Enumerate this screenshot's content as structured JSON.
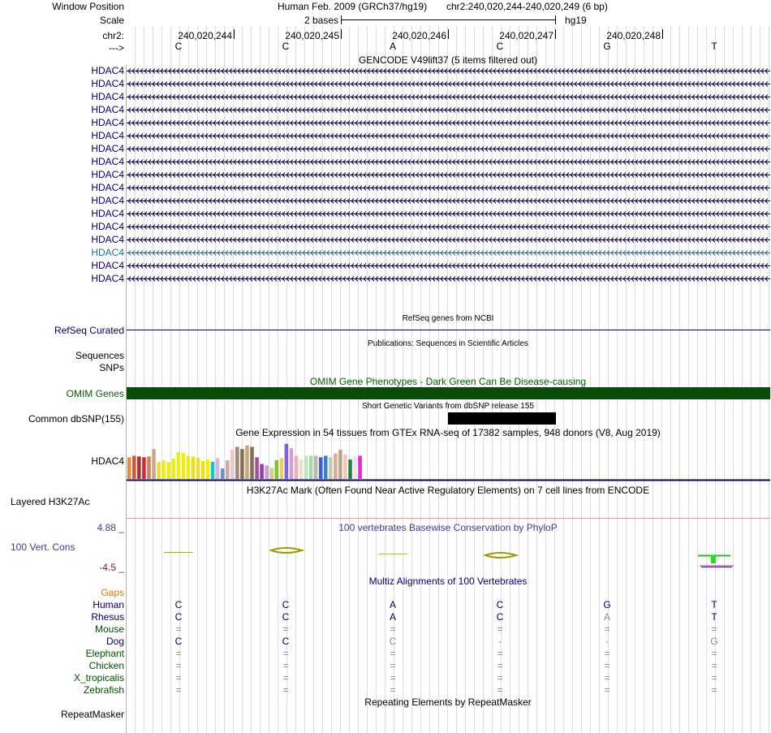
{
  "header": {
    "window_position_label": "Window Position",
    "assembly": "Human Feb. 2009 (GRCh37/hg19)",
    "position": "chr2:240,020,244-240,020,249 (6 bp)",
    "scale_label": "Scale",
    "scale_text": "2 bases",
    "scale_db": "hg19",
    "chrom_label": "chr2:",
    "strand_label": "--->"
  },
  "ruler": {
    "ticks": [
      "240,020,244",
      "240,020,245",
      "240,020,246",
      "240,020,247",
      "240,020,248"
    ],
    "bases": [
      "C",
      "C",
      "A",
      "C",
      "G",
      "T"
    ]
  },
  "tracks": {
    "gencode": {
      "title": "GENCODE V49lift37 (5 items filtered out)",
      "items": [
        "HDAC4",
        "HDAC4",
        "HDAC4",
        "HDAC4",
        "HDAC4",
        "HDAC4",
        "HDAC4",
        "HDAC4",
        "HDAC4",
        "HDAC4",
        "HDAC4",
        "HDAC4",
        "HDAC4",
        "HDAC4",
        "HDAC4",
        "HDAC4",
        "HDAC4"
      ],
      "highlight_index": 14,
      "line_color": "#000066",
      "highlight_color": "#1f6f99"
    },
    "refseq": {
      "title": "RefSeq genes from NCBI",
      "label": "RefSeq Curated"
    },
    "publications": {
      "title": "Publications: Sequences in Scientific Articles",
      "label1": "Sequences",
      "label2": "SNPs"
    },
    "omim": {
      "title": "OMIM Gene Phenotypes - Dark Green Can Be Disease-causing",
      "label": "OMIM Genes",
      "color": "#0a4d0a"
    },
    "dbsnp": {
      "title": "Short Genetic Variants from dbSNP release 155",
      "label": "Common dbSNP(155)"
    },
    "gtex": {
      "title": "Gene Expression in 54 tissues from GTEx RNA-seq of 17382 samples, 948 donors (V8, Aug 2019)",
      "label": "HDAC4",
      "bar_values": [
        0.58,
        0.62,
        0.6,
        0.58,
        0.6,
        0.8,
        0.45,
        0.5,
        0.45,
        0.55,
        0.72,
        0.7,
        0.62,
        0.6,
        0.56,
        0.48,
        0.52,
        0.46,
        0.55,
        0.28,
        0.5,
        0.78,
        0.86,
        0.8,
        0.9,
        0.86,
        0.58,
        0.4,
        0.36,
        0.3,
        0.5,
        0.56,
        0.94,
        0.82,
        0.62,
        0.52,
        0.62,
        0.62,
        0.62,
        0.58,
        0.62,
        0.58,
        0.68,
        0.78,
        0.66,
        0.52,
        0.6,
        0.62
      ],
      "bar_colors": [
        "#e88b3a",
        "#e0512a",
        "#b03030",
        "#e0202a",
        "#d08060",
        "#c8a882",
        "#e8e020",
        "#f0f000",
        "#f0f000",
        "#f0f000",
        "#f0f000",
        "#f0f000",
        "#f0f000",
        "#e8e020",
        "#e8e020",
        "#e8e020",
        "#f0f000",
        "#10c8c8",
        "#d8b4d8",
        "#6495c8",
        "#d0a8a8",
        "#e8c8c8",
        "#a08878",
        "#8b6b50",
        "#c8a882",
        "#8b6b50",
        "#a050a0",
        "#9040a0",
        "#c8a0d8",
        "#c8d870",
        "#80c040",
        "#e8d060",
        "#8060e8",
        "#c8a0e0",
        "#f0b0b0",
        "#e8e0d0",
        "#b8e8b8",
        "#a8d8a8",
        "#c0b8a8",
        "#4060d0",
        "#3080e0",
        "#c8c8a8",
        "#d0b090",
        "#c0a080",
        "#f0c8b0",
        "#208040",
        "#e8e8e8",
        "#f020e0"
      ]
    },
    "h3k27ac": {
      "title": "H3K27Ac Mark (Often Found Near Active Regulatory Elements) on 7 cell lines from ENCODE",
      "label": "Layered H3K27Ac"
    },
    "phylop": {
      "title": "100 vertebrates Basewise Conservation by PhyloP",
      "label": "100 Vert. Cons",
      "max": "4.88 _",
      "min": "-4.5 _"
    },
    "multiz": {
      "title": "Multiz Alignments of 100 Vertebrates",
      "gaps_label": "Gaps",
      "species": [
        {
          "name": "Human",
          "bases": [
            "C",
            "C",
            "A",
            "C",
            "G",
            "T"
          ]
        },
        {
          "name": "Rhesus",
          "bases": [
            "C",
            "C",
            "A",
            "C",
            "A",
            "T"
          ]
        },
        {
          "name": "Mouse",
          "bases": [
            "=",
            "=",
            "=",
            "=",
            "=",
            "="
          ]
        },
        {
          "name": "Dog",
          "bases": [
            "C",
            "C",
            "C",
            "-",
            "-",
            "G"
          ]
        },
        {
          "name": "Elephant",
          "bases": [
            "=",
            "=",
            "=",
            "=",
            "=",
            "="
          ]
        },
        {
          "name": "Chicken",
          "bases": [
            "=",
            "=",
            "=",
            "=",
            "=",
            "="
          ]
        },
        {
          "name": "X_tropicalis",
          "bases": [
            "=",
            "=",
            "=",
            "=",
            "=",
            "="
          ]
        },
        {
          "name": "Zebrafish",
          "bases": [
            "=",
            "=",
            "=",
            "=",
            "=",
            "="
          ]
        }
      ]
    },
    "repeatmasker": {
      "title": "Repeating Elements by RepeatMasker",
      "label": "RepeatMasker"
    }
  }
}
